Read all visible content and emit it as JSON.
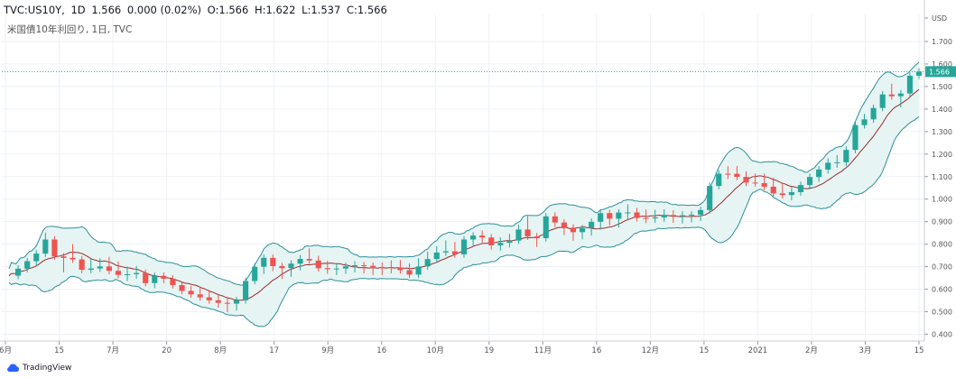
{
  "header": {
    "symbol": "TVC:US10Y,",
    "interval": "1D",
    "last": "1.566",
    "change": "0.000 (0.02%)",
    "open": "O:1.566",
    "high": "H:1.622",
    "low": "L:1.537",
    "close": "C:1.566"
  },
  "subtitle": "米国債10年利回り, 1日, TVC",
  "brand": {
    "name": "TradingView",
    "icon": "tradingview-cloud-icon"
  },
  "colors": {
    "up": "#26a69a",
    "down": "#ef5350",
    "band": "#2f8f9a",
    "basis": "#9b2d2d",
    "fill": "#e6f4f3",
    "price_label": "#26a69a"
  },
  "chart_data": {
    "type": "candlestick",
    "symbol": "TVC:US10Y",
    "ylim": [
      0.37,
      1.82
    ],
    "y_ticks": [
      "USD",
      "1.700",
      "1.600",
      "1.500",
      "1.400",
      "1.300",
      "1.200",
      "1.100",
      "1.000",
      "0.900",
      "0.800",
      "0.700",
      "0.600",
      "0.500",
      "0.400"
    ],
    "x_ticks": [
      "6月",
      "15",
      "7月",
      "20",
      "8月",
      "17",
      "9月",
      "16",
      "10月",
      "19",
      "11月",
      "16",
      "12月",
      "15",
      "2021",
      "2月",
      "3月",
      "15"
    ],
    "last_price_label": "1.566",
    "indicator": "Bollinger Bands",
    "close_points": [
      [
        0,
        0.66
      ],
      [
        6,
        0.7
      ],
      [
        12,
        0.75
      ],
      [
        14,
        0.84
      ],
      [
        18,
        0.79
      ],
      [
        22,
        0.7
      ],
      [
        26,
        0.79
      ],
      [
        30,
        0.7
      ],
      [
        40,
        0.72
      ],
      [
        50,
        0.66
      ],
      [
        55,
        0.68
      ],
      [
        60,
        0.62
      ],
      [
        65,
        0.66
      ],
      [
        75,
        0.6
      ],
      [
        85,
        0.57
      ],
      [
        95,
        0.53
      ],
      [
        100,
        0.54
      ],
      [
        106,
        0.66
      ],
      [
        112,
        0.72
      ],
      [
        118,
        0.67
      ],
      [
        124,
        0.71
      ],
      [
        130,
        0.75
      ],
      [
        136,
        0.7
      ],
      [
        142,
        0.69
      ],
      [
        150,
        0.7
      ],
      [
        160,
        0.69
      ],
      [
        170,
        0.7
      ],
      [
        176,
        0.68
      ],
      [
        180,
        0.72
      ],
      [
        186,
        0.77
      ],
      [
        190,
        0.79
      ],
      [
        196,
        0.76
      ],
      [
        200,
        0.82
      ],
      [
        206,
        0.84
      ],
      [
        212,
        0.79
      ],
      [
        220,
        0.82
      ],
      [
        226,
        0.9
      ],
      [
        230,
        0.79
      ],
      [
        236,
        0.93
      ],
      [
        242,
        0.88
      ],
      [
        248,
        0.84
      ],
      [
        254,
        0.86
      ],
      [
        260,
        0.92
      ],
      [
        264,
        0.9
      ],
      [
        270,
        0.95
      ],
      [
        276,
        0.92
      ],
      [
        282,
        0.92
      ],
      [
        288,
        0.93
      ],
      [
        294,
        0.92
      ],
      [
        300,
        0.92
      ],
      [
        304,
        0.94
      ],
      [
        308,
        1.05
      ],
      [
        312,
        1.11
      ],
      [
        318,
        1.12
      ],
      [
        324,
        1.09
      ],
      [
        330,
        1.09
      ],
      [
        336,
        1.04
      ],
      [
        342,
        1.02
      ],
      [
        348,
        1.06
      ],
      [
        354,
        1.11
      ],
      [
        360,
        1.16
      ],
      [
        366,
        1.17
      ],
      [
        372,
        1.34
      ],
      [
        378,
        1.38
      ],
      [
        382,
        1.45
      ],
      [
        386,
        1.49
      ],
      [
        390,
        1.42
      ],
      [
        394,
        1.5
      ],
      [
        398,
        1.566
      ]
    ]
  }
}
